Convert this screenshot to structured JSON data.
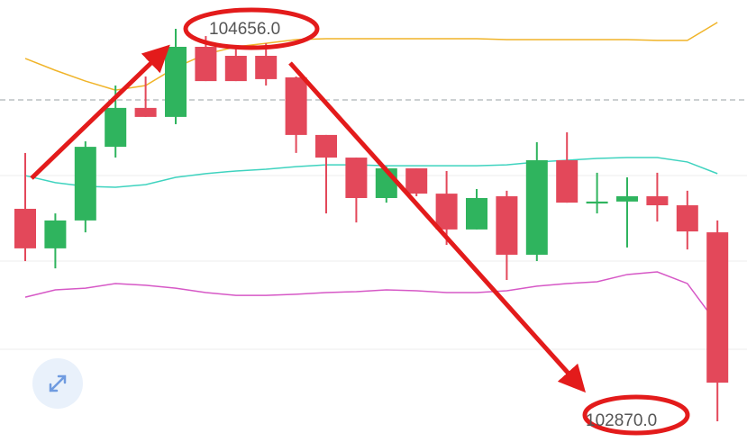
{
  "chart_data": {
    "type": "candlestick",
    "ylim": [
      102776,
      104787
    ],
    "categories": [
      null,
      null,
      null,
      null,
      null,
      null,
      null,
      null,
      null,
      null,
      null,
      null,
      null,
      null,
      null,
      null,
      null,
      null,
      null,
      null,
      null,
      null,
      null,
      null
    ],
    "open": [
      103837,
      103657,
      103784,
      104119,
      104296,
      104255,
      104574,
      104533,
      104533,
      104435,
      104173,
      104070,
      103886,
      104021,
      103906,
      103743,
      103894,
      103628,
      104058,
      103861,
      103870,
      103894,
      103853,
      103730
    ],
    "high": [
      104091,
      103816,
      104144,
      104398,
      104439,
      104656,
      104623,
      104582,
      104590,
      104439,
      104173,
      104070,
      104029,
      104021,
      104009,
      103927,
      103919,
      104140,
      104185,
      104001,
      103980,
      104001,
      103919,
      103784
    ],
    "low": [
      103599,
      103566,
      103730,
      104070,
      104255,
      104222,
      104418,
      104418,
      104398,
      104091,
      103816,
      103775,
      103865,
      103894,
      103673,
      103743,
      103513,
      103599,
      103865,
      103816,
      103661,
      103779,
      103652,
      102870
    ],
    "close": [
      103657,
      103784,
      104119,
      104296,
      104255,
      104574,
      104418,
      104418,
      104427,
      104173,
      104070,
      103886,
      104021,
      103906,
      103743,
      103886,
      103628,
      104058,
      103865,
      103870,
      103894,
      103853,
      103734,
      103046
    ],
    "up_color": "#2fb45e",
    "down_color": "#e3485a",
    "lines": [
      {
        "color": "#f0b429",
        "values": [
          104521,
          104467,
          104418,
          104377,
          104398,
          104480,
          104541,
          104574,
          104590,
          104607,
          104611,
          104611,
          104611,
          104611,
          104611,
          104611,
          104607,
          104607,
          104607,
          104607,
          104607,
          104603,
          104603,
          104685
        ]
      },
      {
        "color": "#3fd3bf",
        "values": [
          103988,
          103956,
          103939,
          103935,
          103947,
          103980,
          103997,
          104009,
          104017,
          104029,
          104037,
          104037,
          104033,
          104033,
          104033,
          104033,
          104037,
          104050,
          104058,
          104066,
          104070,
          104070,
          104050,
          103997
        ]
      },
      {
        "color": "#d658c6",
        "values": [
          103435,
          103468,
          103476,
          103497,
          103489,
          103476,
          103456,
          103443,
          103443,
          103448,
          103456,
          103460,
          103468,
          103464,
          103456,
          103456,
          103464,
          103485,
          103497,
          103505,
          103538,
          103550,
          103497,
          103312
        ]
      }
    ],
    "annotations": [
      "104656.0",
      "102870.0"
    ]
  }
}
